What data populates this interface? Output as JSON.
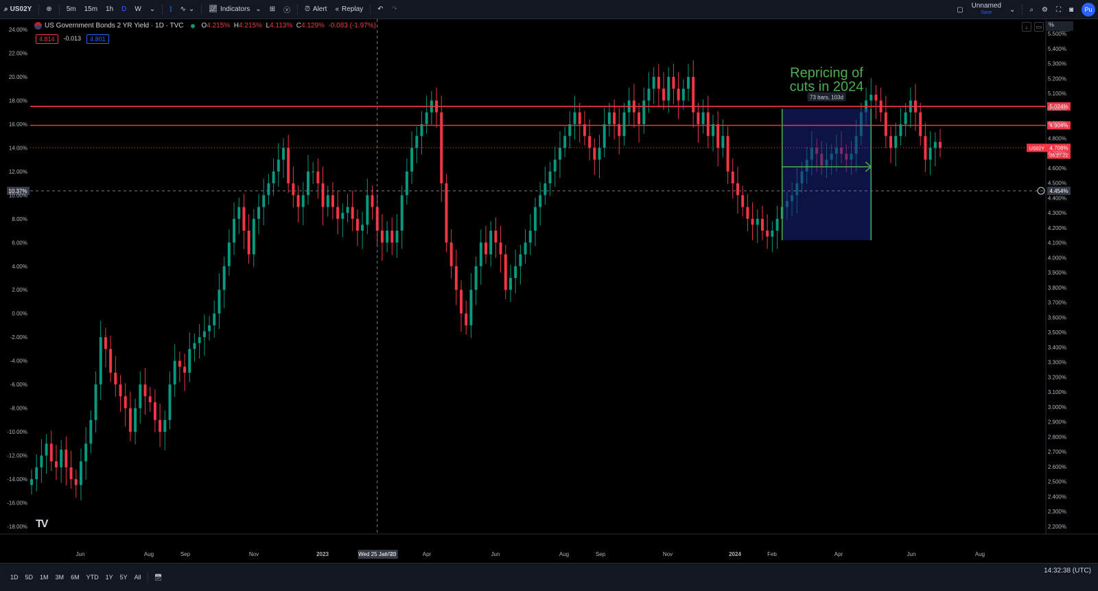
{
  "toolbar": {
    "symbol": "US02Y",
    "intervals": [
      "5m",
      "15m",
      "1h",
      "D",
      "W"
    ],
    "active_interval": "D",
    "indicators_label": "Indicators",
    "alert_label": "Alert",
    "replay_label": "Replay",
    "layout_name": "Unnamed",
    "layout_save": "Save",
    "publish_label": "Pu"
  },
  "legend": {
    "title": "US Government Bonds 2 YR Yield · 1D · TVC",
    "open_label": "O",
    "open": "4.215%",
    "high_label": "H",
    "high": "4.215%",
    "low_label": "L",
    "low": "4.113%",
    "close_label": "C",
    "close": "4.129%",
    "change": "-0.083 (-1.97%)",
    "sell_price": "4.814",
    "spread": "-0.013",
    "buy_price": "4.801"
  },
  "scale_mode": "%",
  "annotation": {
    "text_line1": "Repricing of",
    "text_line2": "cuts in 2024",
    "range_label": "73 bars, 103d",
    "color": "#4caf50"
  },
  "crosshair": {
    "date_label": "Wed 25 Jan '23",
    "left_value": "10.37%",
    "right_value": "4.454%"
  },
  "levels": [
    {
      "value": "5.024%",
      "pct": 17.5
    },
    {
      "value": "4.904%",
      "pct": 15.9
    }
  ],
  "last_price": {
    "symbol": "US02Y",
    "value": "4.708%",
    "countdown": "06:27:22"
  },
  "left_axis": [
    "24.00%",
    "22.00%",
    "20.00%",
    "18.00%",
    "16.00%",
    "14.00%",
    "12.00%",
    "10.00%",
    "8.00%",
    "6.00%",
    "4.00%",
    "2.00%",
    "0.00%",
    "-2.00%",
    "-4.00%",
    "-6.00%",
    "-8.00%",
    "-10.00%",
    "-12.00%",
    "-14.00%",
    "-16.00%",
    "-18.00%"
  ],
  "right_axis": [
    "5.500%",
    "5.400%",
    "5.300%",
    "5.200%",
    "5.100%",
    "5.000%",
    "4.900%",
    "4.800%",
    "4.700%",
    "4.600%",
    "4.500%",
    "4.400%",
    "4.300%",
    "4.200%",
    "4.100%",
    "4.000%",
    "3.900%",
    "3.800%",
    "3.700%",
    "3.600%",
    "3.500%",
    "3.400%",
    "3.300%",
    "3.200%",
    "3.100%",
    "3.000%",
    "2.900%",
    "2.800%",
    "2.700%",
    "2.600%",
    "2.500%",
    "2.400%",
    "2.300%",
    "2.200%"
  ],
  "time_axis": [
    "Jun",
    "Aug",
    "Sep",
    "Nov",
    "2023",
    "Mar",
    "Apr",
    "Jun",
    "Aug",
    "Sep",
    "Nov",
    "2024",
    "Feb",
    "Apr",
    "Jun",
    "Aug"
  ],
  "bottom": {
    "ranges": [
      "1D",
      "5D",
      "1M",
      "3M",
      "6M",
      "YTD",
      "1Y",
      "5Y",
      "All"
    ],
    "clock": "14:32:38 (UTC)"
  },
  "colors": {
    "up": "#089981",
    "down": "#f23645",
    "level_line": "#f23645",
    "range_fill": "#1a237e"
  },
  "chart_data": {
    "type": "candlestick",
    "title": "US Government Bonds 2 YR Yield · 1D · TVC",
    "yunit": "% change",
    "ylim": [
      -18,
      24
    ],
    "series": [
      {
        "values": [
          -14,
          -13,
          -12,
          -11,
          -12.5,
          -13,
          -11.5,
          -13,
          -14,
          -14.5,
          -12.5,
          -11,
          -9,
          -6,
          -2,
          -3,
          -5,
          -6,
          -7,
          -8,
          -10,
          -8,
          -6,
          -7,
          -7.5,
          -9,
          -10,
          -9,
          -6,
          -4,
          -4.5,
          -5,
          -3,
          -2.5,
          -2,
          -1.5,
          -1,
          0,
          2,
          4,
          6,
          8,
          9,
          7,
          5,
          8,
          9,
          10,
          11,
          12,
          13,
          14,
          11,
          10,
          9,
          10,
          12,
          12,
          11,
          9,
          10,
          9,
          8,
          8.5,
          9,
          8,
          7,
          7.5,
          10,
          9,
          7,
          6,
          7,
          6,
          7,
          10,
          12,
          14,
          15,
          16,
          17,
          18,
          17,
          11,
          6,
          4,
          2,
          0,
          -1,
          2,
          4,
          6,
          5,
          7,
          6,
          5,
          2,
          3,
          4,
          5,
          6,
          7,
          9,
          10,
          11,
          12,
          13,
          14,
          15,
          16,
          17,
          16,
          15,
          14,
          13,
          14,
          16,
          17,
          16,
          15,
          17,
          18,
          17,
          16,
          18,
          19,
          20,
          19,
          18,
          20,
          19,
          18,
          19,
          20,
          17,
          16,
          17,
          15,
          16,
          14,
          15,
          12,
          11,
          10,
          9,
          8,
          7.5,
          8,
          7,
          6.5,
          7,
          8,
          9,
          9.5,
          10,
          11,
          12,
          13,
          14,
          13.5,
          12.5,
          13,
          13.5,
          14,
          13.5,
          13,
          13.5,
          15,
          17,
          18,
          18.5,
          18,
          17,
          15,
          14,
          15,
          16,
          17,
          18,
          17,
          15,
          13,
          14,
          14.5,
          14
        ]
      }
    ]
  }
}
